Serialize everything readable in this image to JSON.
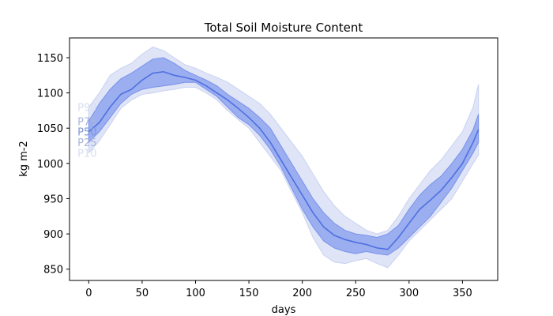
{
  "chart_data": {
    "type": "area",
    "title": "Total Soil Moisture Content",
    "xlabel": "days",
    "ylabel": "kg m-2",
    "xlim": [
      -18,
      383
    ],
    "ylim": [
      834,
      1178
    ],
    "xticks": [
      0,
      50,
      100,
      150,
      200,
      250,
      300,
      350
    ],
    "yticks": [
      850,
      900,
      950,
      1000,
      1050,
      1100,
      1150
    ],
    "grid": false,
    "colors": {
      "outer_band": "#dfe4f7",
      "inner_band": "#9aaef0",
      "inner_band_edge": "#7a92ea",
      "median": "#4f6fe0",
      "label_p50": "#7f96d8",
      "label_p25_p75": "#a8b5dc",
      "label_p10_p90": "#d8def0"
    },
    "band_labels": [
      {
        "text": "P90",
        "series": "P90"
      },
      {
        "text": "P75",
        "series": "P75"
      },
      {
        "text": "P50",
        "series": "P50"
      },
      {
        "text": "P25",
        "series": "P25"
      },
      {
        "text": "P10",
        "series": "P10"
      }
    ],
    "x": [
      0,
      10,
      20,
      30,
      40,
      50,
      60,
      70,
      80,
      90,
      100,
      110,
      120,
      130,
      140,
      150,
      160,
      170,
      180,
      190,
      200,
      210,
      220,
      230,
      240,
      250,
      260,
      270,
      280,
      290,
      300,
      310,
      320,
      330,
      340,
      350,
      360,
      365
    ],
    "series": [
      {
        "name": "P10",
        "values": [
          1015,
          1032,
          1055,
          1078,
          1090,
          1098,
          1100,
          1103,
          1105,
          1108,
          1108,
          1100,
          1090,
          1075,
          1062,
          1050,
          1030,
          1010,
          990,
          960,
          930,
          895,
          870,
          860,
          858,
          862,
          865,
          858,
          852,
          870,
          890,
          905,
          920,
          935,
          950,
          975,
          1000,
          1012
        ]
      },
      {
        "name": "P25",
        "values": [
          1030,
          1045,
          1065,
          1085,
          1098,
          1105,
          1108,
          1110,
          1112,
          1115,
          1115,
          1105,
          1095,
          1080,
          1065,
          1055,
          1040,
          1020,
          995,
          965,
          935,
          910,
          890,
          880,
          875,
          872,
          875,
          872,
          870,
          880,
          895,
          910,
          925,
          945,
          965,
          990,
          1015,
          1030
        ]
      },
      {
        "name": "P50",
        "values": [
          1045,
          1058,
          1080,
          1098,
          1105,
          1118,
          1128,
          1130,
          1125,
          1122,
          1118,
          1110,
          1100,
          1090,
          1078,
          1065,
          1050,
          1030,
          1005,
          980,
          955,
          930,
          910,
          898,
          892,
          888,
          885,
          880,
          878,
          895,
          915,
          935,
          948,
          962,
          980,
          1000,
          1030,
          1048
        ]
      },
      {
        "name": "P75",
        "values": [
          1060,
          1085,
          1105,
          1120,
          1128,
          1138,
          1148,
          1150,
          1142,
          1132,
          1125,
          1118,
          1110,
          1098,
          1088,
          1078,
          1065,
          1050,
          1025,
          1000,
          975,
          950,
          930,
          915,
          905,
          900,
          898,
          895,
          900,
          912,
          935,
          955,
          970,
          982,
          1000,
          1020,
          1048,
          1070
        ]
      },
      {
        "name": "P90",
        "values": [
          1080,
          1100,
          1125,
          1135,
          1142,
          1155,
          1165,
          1160,
          1150,
          1140,
          1135,
          1128,
          1122,
          1115,
          1105,
          1095,
          1085,
          1070,
          1050,
          1030,
          1010,
          985,
          960,
          940,
          925,
          915,
          905,
          900,
          905,
          925,
          950,
          970,
          990,
          1005,
          1025,
          1045,
          1080,
          1112
        ]
      }
    ]
  }
}
